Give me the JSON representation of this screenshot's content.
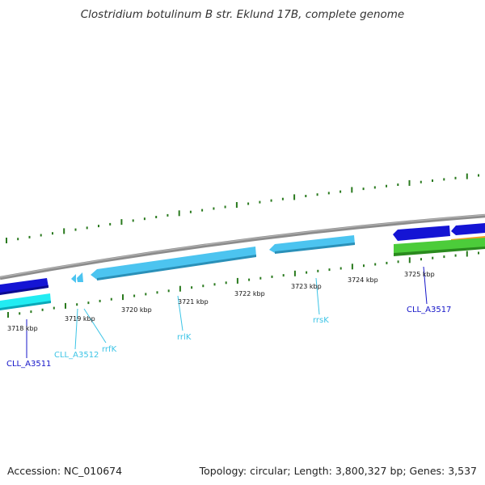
{
  "title": "Clostridium botulinum B str. Eklund 17B, complete genome",
  "footer": {
    "accession": "Accession: NC_010674",
    "summary": "Topology: circular; Length: 3,800,327 bp; Genes: 3,537"
  },
  "colors": {
    "backbone": "#8c8c8c",
    "tick": "#2a7a1e",
    "dark_blue": "#1414d4",
    "light_blue": "#4cc4f0",
    "cyan": "#22ecf2",
    "green": "#4ccc3a",
    "orange": "#ff9a1e"
  },
  "scale_ticks": [
    {
      "label": "3718 kbp"
    },
    {
      "label": "3719 kbp"
    },
    {
      "label": "3720 kbp"
    },
    {
      "label": "3721 kbp"
    },
    {
      "label": "3722 kbp"
    },
    {
      "label": "3723 kbp"
    },
    {
      "label": "3724 kbp"
    },
    {
      "label": "3725 kbp"
    }
  ],
  "gene_labels": [
    {
      "text": "CLL_A3511",
      "color": "#1414c8"
    },
    {
      "text": "CLL_A3512",
      "color": "#3cc4e6"
    },
    {
      "text": "rrfK",
      "color": "#3cc4e6"
    },
    {
      "text": "rrlK",
      "color": "#3cc4e6"
    },
    {
      "text": "rrsK",
      "color": "#3cc4e6"
    },
    {
      "text": "CLL_A3517",
      "color": "#1414c8"
    }
  ]
}
